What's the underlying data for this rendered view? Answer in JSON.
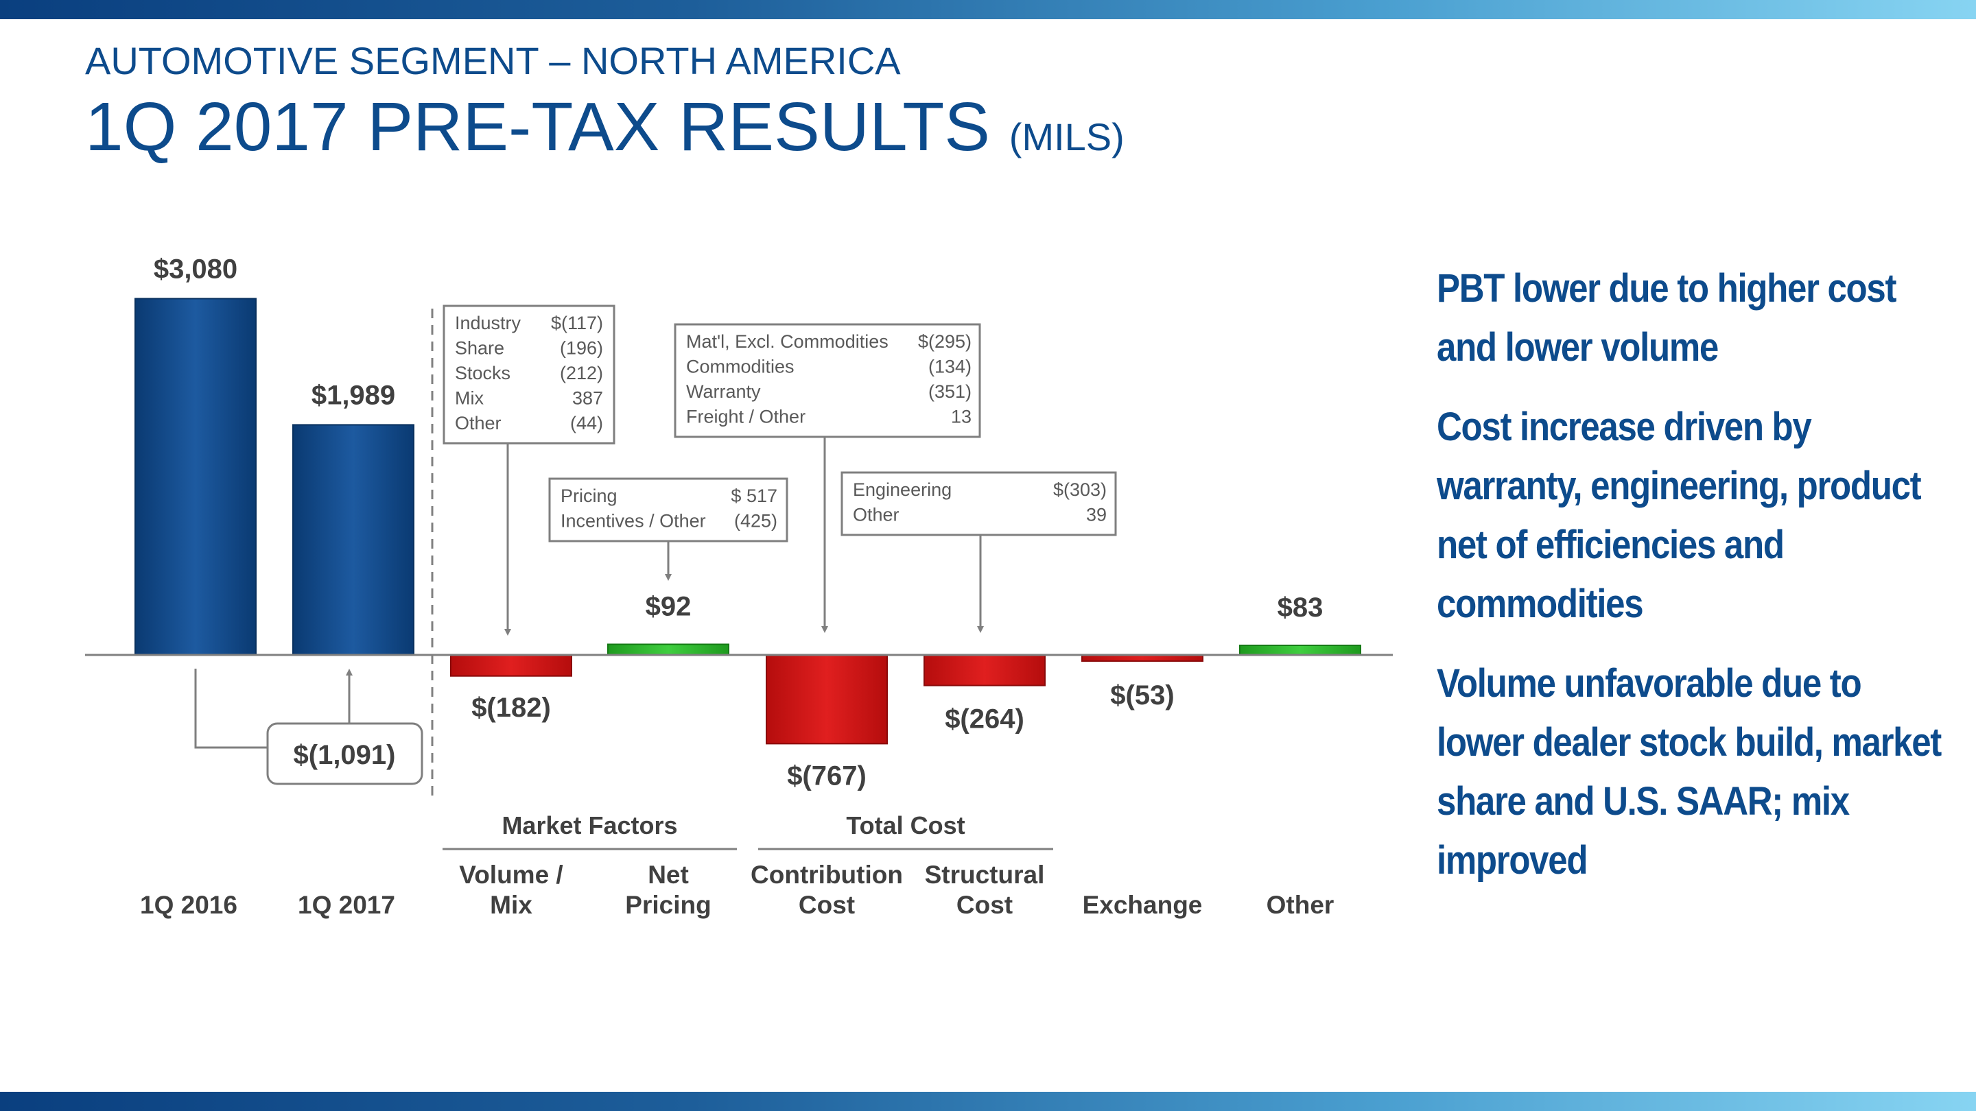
{
  "header": {
    "subtitle": "AUTOMOTIVE SEGMENT – NORTH AMERICA",
    "title": "1Q 2017 PRE-TAX RESULTS",
    "title_units": "(MILS)"
  },
  "chart_data": {
    "type": "waterfall",
    "units": "millions USD",
    "categories": [
      "1Q 2016",
      "1Q 2017",
      "Volume / Mix",
      "Net Pricing",
      "Contribution Cost",
      "Structural Cost",
      "Exchange",
      "Other"
    ],
    "values": [
      3080,
      1989,
      -182,
      92,
      -767,
      -264,
      -53,
      83
    ],
    "bar_kinds": [
      "total",
      "total",
      "delta",
      "delta",
      "delta",
      "delta",
      "delta",
      "delta"
    ],
    "value_labels": [
      "$3,080",
      "$1,989",
      "$(182)",
      "$92",
      "$(767)",
      "$(264)",
      "$(53)",
      "$83"
    ],
    "x_labels": [
      [
        "1Q 2016"
      ],
      [
        "1Q 2017"
      ],
      [
        "Volume /",
        "Mix"
      ],
      [
        "Net",
        "Pricing"
      ],
      [
        "Contribution",
        "Cost"
      ],
      [
        "Structural",
        "Cost"
      ],
      [
        "Exchange"
      ],
      [
        "Other"
      ]
    ],
    "change_total": {
      "value": -1091,
      "label": "$(1,091)"
    },
    "groups": [
      {
        "label": "Market Factors",
        "span": [
          2,
          3
        ]
      },
      {
        "label": "Total Cost",
        "span": [
          4,
          5
        ]
      }
    ],
    "callouts": [
      {
        "target": 2,
        "rows": [
          [
            "Industry",
            "$(117)"
          ],
          [
            "Share",
            "(196)"
          ],
          [
            "Stocks",
            "(212)"
          ],
          [
            "Mix",
            "387"
          ],
          [
            "Other",
            "(44)"
          ]
        ]
      },
      {
        "target": 3,
        "rows": [
          [
            "Pricing",
            "$ 517"
          ],
          [
            "Incentives / Other",
            "(425)"
          ]
        ]
      },
      {
        "target": 4,
        "rows": [
          [
            "Mat'l, Excl. Commodities",
            "$(295)"
          ],
          [
            "Commodities",
            "(134)"
          ],
          [
            "Warranty",
            "(351)"
          ],
          [
            "Freight / Other",
            "13"
          ]
        ]
      },
      {
        "target": 5,
        "rows": [
          [
            "Engineering",
            "$(303)"
          ],
          [
            "Other",
            "39"
          ]
        ]
      }
    ],
    "colors": {
      "total": "#0d4b8c",
      "negative": "#d11616",
      "positive": "#2fb52f"
    }
  },
  "bullets": [
    "PBT lower due to higher cost and lower volume",
    "Cost increase driven by warranty, engineering, product net of efficiencies and commodities",
    "Volume unfavorable due to lower dealer stock build, market share and U.S. SAAR; mix improved"
  ]
}
